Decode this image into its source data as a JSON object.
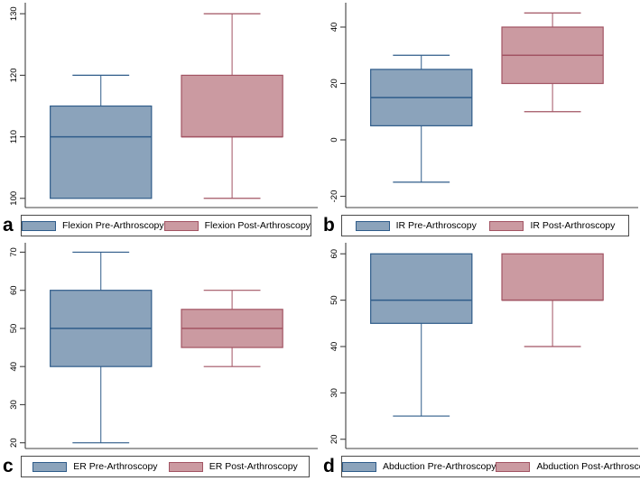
{
  "figure": {
    "background": "#ffffff",
    "colors": {
      "pre_fill": "#8BA3BB",
      "pre_stroke": "#2F5C8A",
      "post_fill": "#CB9AA1",
      "post_stroke": "#A25463",
      "axis": "#404040",
      "tick_text": "#000000",
      "legend_border": "#4a4a4a"
    }
  },
  "chart_data": [
    {
      "type": "box",
      "panel": "a",
      "measure": "Flexion",
      "ylim": [
        98.5,
        131.5
      ],
      "yticks": [
        100,
        110,
        120,
        130
      ],
      "grid": false,
      "legend_position": "bottom",
      "series": [
        {
          "name": "Flexion Pre-Arthroscopy",
          "color_role": "pre",
          "whisker_low": 100,
          "q1": 100,
          "median": 110,
          "q3": 115,
          "whisker_high": 120
        },
        {
          "name": "Flexion Post-Arthroscopy",
          "color_role": "post",
          "whisker_low": 100,
          "q1": 110,
          "median": 110,
          "q3": 120,
          "whisker_high": 130
        }
      ]
    },
    {
      "type": "box",
      "panel": "b",
      "measure": "IR",
      "ylim": [
        -24,
        48
      ],
      "yticks": [
        -20,
        0,
        20,
        40
      ],
      "grid": false,
      "legend_position": "bottom",
      "series": [
        {
          "name": "IR Pre-Arthroscopy",
          "color_role": "pre",
          "whisker_low": -15,
          "q1": 5,
          "median": 15,
          "q3": 25,
          "whisker_high": 30
        },
        {
          "name": "IR Post-Arthroscopy",
          "color_role": "post",
          "whisker_low": 10,
          "q1": 20,
          "median": 30,
          "q3": 40,
          "whisker_high": 45
        }
      ]
    },
    {
      "type": "box",
      "panel": "c",
      "measure": "ER",
      "ylim": [
        18.5,
        72
      ],
      "yticks": [
        20,
        30,
        40,
        50,
        60,
        70
      ],
      "grid": false,
      "legend_position": "bottom",
      "series": [
        {
          "name": "ER Pre-Arthroscopy",
          "color_role": "pre",
          "whisker_low": 20,
          "q1": 40,
          "median": 50,
          "q3": 60,
          "whisker_high": 70
        },
        {
          "name": "ER Post-Arthroscopy",
          "color_role": "post",
          "whisker_low": 40,
          "q1": 45,
          "median": 50,
          "q3": 55,
          "whisker_high": 60
        }
      ]
    },
    {
      "type": "box",
      "panel": "d",
      "measure": "Abduction",
      "ylim": [
        18,
        62
      ],
      "yticks": [
        20,
        30,
        40,
        50,
        60
      ],
      "grid": false,
      "legend_position": "bottom",
      "series": [
        {
          "name": "Abduction Pre-Arthroscopy",
          "color_role": "pre",
          "whisker_low": 25,
          "q1": 45,
          "median": 50,
          "q3": 60,
          "whisker_high": 60
        },
        {
          "name": "Abduction Post-Arthroscopy",
          "color_role": "post",
          "whisker_low": 40,
          "q1": 50,
          "median": 50,
          "q3": 60,
          "whisker_high": 60
        }
      ]
    }
  ]
}
